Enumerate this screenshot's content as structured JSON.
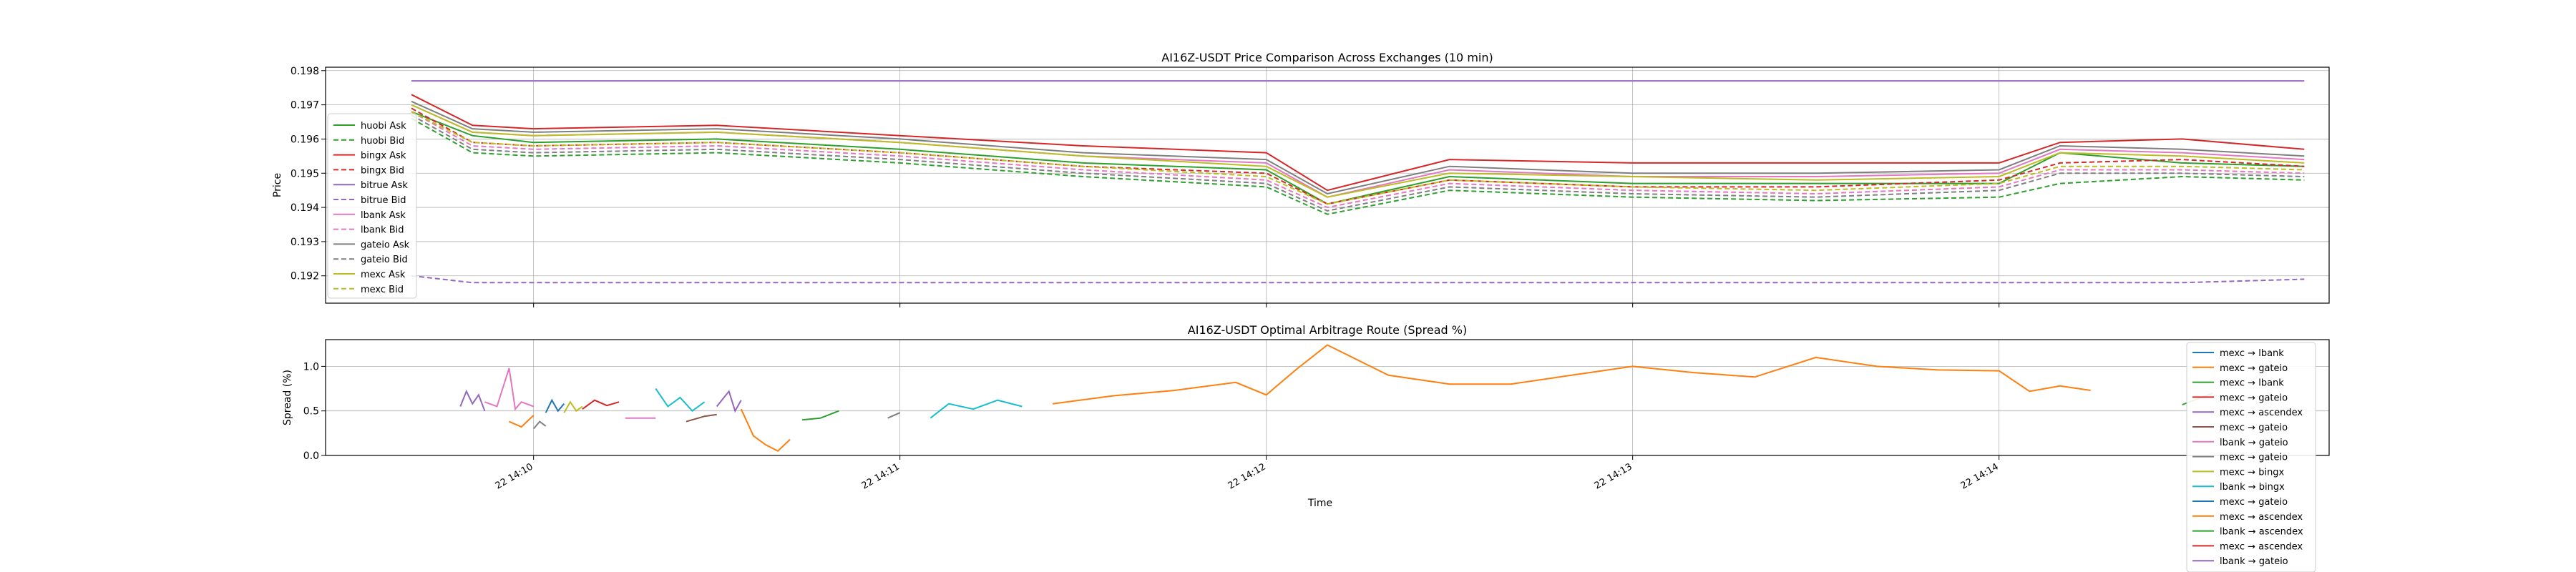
{
  "chart_data": [
    {
      "type": "line",
      "title": "AI16Z-USDT Price Comparison Across Exchanges (10 min)",
      "xlabel": "",
      "ylabel": "Price",
      "ylim": [
        0.1912,
        0.1981
      ],
      "yticks": [
        "0.192",
        "0.193",
        "0.194",
        "0.195",
        "0.196",
        "0.197",
        "0.198"
      ],
      "grid": true,
      "legend_position": "left",
      "x": [
        "14:09:40",
        "14:09:50",
        "14:10:00",
        "14:10:30",
        "14:11:00",
        "14:11:30",
        "14:12:00",
        "14:12:10",
        "14:12:30",
        "14:13:00",
        "14:13:30",
        "14:14:00",
        "14:14:10",
        "14:14:30",
        "14:14:50"
      ],
      "series": [
        {
          "name": "huobi Ask",
          "color": "#2ca02c",
          "dash": "solid",
          "values": [
            0.1968,
            0.1961,
            0.1959,
            0.196,
            0.1957,
            0.1953,
            0.1951,
            0.1941,
            0.1949,
            0.1947,
            0.1947,
            0.1947,
            0.1956,
            0.1953,
            0.1952
          ]
        },
        {
          "name": "huobi Bid",
          "color": "#2ca02c",
          "dash": "dashed",
          "values": [
            0.1966,
            0.1956,
            0.1955,
            0.1956,
            0.1953,
            0.1949,
            0.1946,
            0.1938,
            0.1945,
            0.1943,
            0.1942,
            0.1943,
            0.1947,
            0.1949,
            0.1948
          ]
        },
        {
          "name": "bingx Ask",
          "color": "#d62728",
          "dash": "solid",
          "values": [
            0.1973,
            0.1964,
            0.1963,
            0.1964,
            0.1961,
            0.1958,
            0.1956,
            0.1945,
            0.1954,
            0.1953,
            0.1953,
            0.1953,
            0.1959,
            0.196,
            0.1957
          ]
        },
        {
          "name": "bingx Bid",
          "color": "#d62728",
          "dash": "dashed",
          "values": [
            0.1969,
            0.1959,
            0.1958,
            0.1959,
            0.1956,
            0.1952,
            0.195,
            0.1941,
            0.1948,
            0.1946,
            0.1946,
            0.1948,
            0.1953,
            0.1954,
            0.1952
          ]
        },
        {
          "name": "bitrue Ask",
          "color": "#9467bd",
          "dash": "solid",
          "values": [
            0.1977,
            0.1977,
            0.1977,
            0.1977,
            0.1977,
            0.1977,
            0.1977,
            0.1977,
            0.1977,
            0.1977,
            0.1977,
            0.1977,
            0.1977,
            0.1977,
            0.1977
          ]
        },
        {
          "name": "bitrue Bid",
          "color": "#9467bd",
          "dash": "dashed",
          "values": [
            0.192,
            0.1918,
            0.1918,
            0.1918,
            0.1918,
            0.1918,
            0.1918,
            0.1918,
            0.1918,
            0.1918,
            0.1918,
            0.1918,
            0.1918,
            0.1918,
            0.1919
          ]
        },
        {
          "name": "lbank Ask",
          "color": "#e377c2",
          "dash": "solid",
          "values": [
            0.197,
            0.1962,
            0.1961,
            0.1962,
            0.1959,
            0.1955,
            0.1953,
            0.1943,
            0.1951,
            0.1949,
            0.1949,
            0.195,
            0.1957,
            0.1956,
            0.1954
          ]
        },
        {
          "name": "lbank Bid",
          "color": "#e377c2",
          "dash": "dashed",
          "values": [
            0.1968,
            0.1958,
            0.1957,
            0.1958,
            0.1955,
            0.1951,
            0.1948,
            0.194,
            0.1947,
            0.1945,
            0.1944,
            0.1946,
            0.1951,
            0.1951,
            0.195
          ]
        },
        {
          "name": "gateio Ask",
          "color": "#7f7f7f",
          "dash": "solid",
          "values": [
            0.1971,
            0.1963,
            0.1962,
            0.1963,
            0.196,
            0.1956,
            0.1954,
            0.1944,
            0.1952,
            0.195,
            0.195,
            0.1951,
            0.1958,
            0.1957,
            0.1955
          ]
        },
        {
          "name": "gateio Bid",
          "color": "#7f7f7f",
          "dash": "dashed",
          "values": [
            0.1967,
            0.1957,
            0.1956,
            0.1957,
            0.1954,
            0.195,
            0.1947,
            0.1939,
            0.1946,
            0.1944,
            0.1943,
            0.1945,
            0.195,
            0.195,
            0.1949
          ]
        },
        {
          "name": "mexc Ask",
          "color": "#bcbd22",
          "dash": "solid",
          "values": [
            0.197,
            0.1962,
            0.1961,
            0.1962,
            0.1959,
            0.1955,
            0.1952,
            0.1943,
            0.195,
            0.1949,
            0.1948,
            0.1949,
            0.1956,
            0.1955,
            0.1953
          ]
        },
        {
          "name": "mexc Bid",
          "color": "#bcbd22",
          "dash": "dashed",
          "values": [
            0.1968,
            0.1959,
            0.1958,
            0.1959,
            0.1956,
            0.1952,
            0.1949,
            0.1941,
            0.1948,
            0.1946,
            0.1945,
            0.1947,
            0.1952,
            0.1952,
            0.1951
          ]
        }
      ]
    },
    {
      "type": "line",
      "title": "AI16Z-USDT Optimal Arbitrage Route (Spread %)",
      "xlabel": "Time",
      "ylabel": "Spread (%)",
      "ylim": [
        0.0,
        1.3
      ],
      "yticks": [
        "0.0",
        "0.5",
        "1.0"
      ],
      "grid": true,
      "legend_position": "right",
      "xticks": [
        {
          "label": "22 14:10",
          "time": "14:10:00"
        },
        {
          "label": "22 14:11",
          "time": "14:11:00"
        },
        {
          "label": "22 14:12",
          "time": "14:12:00"
        },
        {
          "label": "22 14:13",
          "time": "14:13:00"
        },
        {
          "label": "22 14:14",
          "time": "14:14:00"
        }
      ],
      "routes": [
        {
          "name": "mexc → lbank",
          "color": "#1f77b4"
        },
        {
          "name": "mexc → gateio",
          "color": "#ff7f0e"
        },
        {
          "name": "mexc → lbank",
          "color": "#2ca02c"
        },
        {
          "name": "mexc → gateio",
          "color": "#d62728"
        },
        {
          "name": "mexc → ascendex",
          "color": "#9467bd"
        },
        {
          "name": "mexc → gateio",
          "color": "#8c564b"
        },
        {
          "name": "lbank → gateio",
          "color": "#e377c2"
        },
        {
          "name": "mexc → gateio",
          "color": "#7f7f7f"
        },
        {
          "name": "mexc → bingx",
          "color": "#bcbd22"
        },
        {
          "name": "lbank → bingx",
          "color": "#17becf"
        },
        {
          "name": "mexc → gateio",
          "color": "#1f77b4"
        },
        {
          "name": "mexc → ascendex",
          "color": "#ff7f0e"
        },
        {
          "name": "lbank → ascendex",
          "color": "#2ca02c"
        },
        {
          "name": "mexc → ascendex",
          "color": "#d62728"
        },
        {
          "name": "lbank → gateio",
          "color": "#9467bd"
        }
      ],
      "segments": [
        {
          "route": 14,
          "x": [
            "14:09:48",
            "14:09:49",
            "14:09:50",
            "14:09:51",
            "14:09:52"
          ],
          "values": [
            0.55,
            0.72,
            0.58,
            0.68,
            0.5
          ]
        },
        {
          "route": 6,
          "x": [
            "14:09:52",
            "14:09:54",
            "14:09:56",
            "14:09:57",
            "14:09:58",
            "14:10:00"
          ],
          "values": [
            0.6,
            0.55,
            0.98,
            0.52,
            0.6,
            0.55
          ]
        },
        {
          "route": 1,
          "x": [
            "14:09:56",
            "14:09:58",
            "14:10:00"
          ],
          "values": [
            0.38,
            0.32,
            0.45
          ]
        },
        {
          "route": 7,
          "x": [
            "14:10:00",
            "14:10:01",
            "14:10:02"
          ],
          "values": [
            0.3,
            0.38,
            0.33
          ]
        },
        {
          "route": 10,
          "x": [
            "14:10:02",
            "14:10:03",
            "14:10:04",
            "14:10:05"
          ],
          "values": [
            0.48,
            0.62,
            0.5,
            0.58
          ]
        },
        {
          "route": 8,
          "x": [
            "14:10:05",
            "14:10:06",
            "14:10:07",
            "14:10:08"
          ],
          "values": [
            0.48,
            0.6,
            0.5,
            0.55
          ]
        },
        {
          "route": 3,
          "x": [
            "14:10:08",
            "14:10:10",
            "14:10:12",
            "14:10:14"
          ],
          "values": [
            0.52,
            0.62,
            0.56,
            0.6
          ]
        },
        {
          "route": 6,
          "x": [
            "14:10:15",
            "14:10:18",
            "14:10:20"
          ],
          "values": [
            0.42,
            0.42,
            0.42
          ]
        },
        {
          "route": 9,
          "x": [
            "14:10:20",
            "14:10:22",
            "14:10:24",
            "14:10:26",
            "14:10:28"
          ],
          "values": [
            0.75,
            0.55,
            0.65,
            0.5,
            0.6
          ]
        },
        {
          "route": 5,
          "x": [
            "14:10:25",
            "14:10:28",
            "14:10:30"
          ],
          "values": [
            0.38,
            0.44,
            0.46
          ]
        },
        {
          "route": 14,
          "x": [
            "14:10:30",
            "14:10:32",
            "14:10:33",
            "14:10:34"
          ],
          "values": [
            0.55,
            0.72,
            0.5,
            0.62
          ]
        },
        {
          "route": 1,
          "x": [
            "14:10:34",
            "14:10:36",
            "14:10:38",
            "14:10:40",
            "14:10:42"
          ],
          "values": [
            0.52,
            0.22,
            0.12,
            0.05,
            0.18
          ]
        },
        {
          "route": 12,
          "x": [
            "14:10:44",
            "14:10:47",
            "14:10:50"
          ],
          "values": [
            0.4,
            0.42,
            0.5
          ]
        },
        {
          "route": 7,
          "x": [
            "14:10:58",
            "14:11:00"
          ],
          "values": [
            0.42,
            0.48
          ]
        },
        {
          "route": 9,
          "x": [
            "14:11:05",
            "14:11:08",
            "14:11:12",
            "14:11:16",
            "14:11:20"
          ],
          "values": [
            0.42,
            0.58,
            0.52,
            0.62,
            0.55
          ]
        },
        {
          "route": 1,
          "x": [
            "14:11:25",
            "14:11:35",
            "14:11:45",
            "14:11:55",
            "14:12:00",
            "14:12:05",
            "14:12:10",
            "14:12:20",
            "14:12:30",
            "14:12:40",
            "14:12:50",
            "14:13:00",
            "14:13:10",
            "14:13:20",
            "14:13:30",
            "14:13:40",
            "14:13:50",
            "14:14:00",
            "14:14:05",
            "14:14:10",
            "14:14:15"
          ],
          "values": [
            0.58,
            0.67,
            0.73,
            0.82,
            0.68,
            0.97,
            1.24,
            0.9,
            0.8,
            0.8,
            0.9,
            1.0,
            0.93,
            0.88,
            1.1,
            1.0,
            0.96,
            0.95,
            0.72,
            0.78,
            0.73
          ]
        },
        {
          "route": 12,
          "x": [
            "14:14:30",
            "14:14:35"
          ],
          "values": [
            0.57,
            0.7
          ]
        },
        {
          "route": 13,
          "x": [
            "14:14:39",
            "14:14:40"
          ],
          "values": [
            0.82,
            0.8
          ]
        }
      ]
    }
  ]
}
